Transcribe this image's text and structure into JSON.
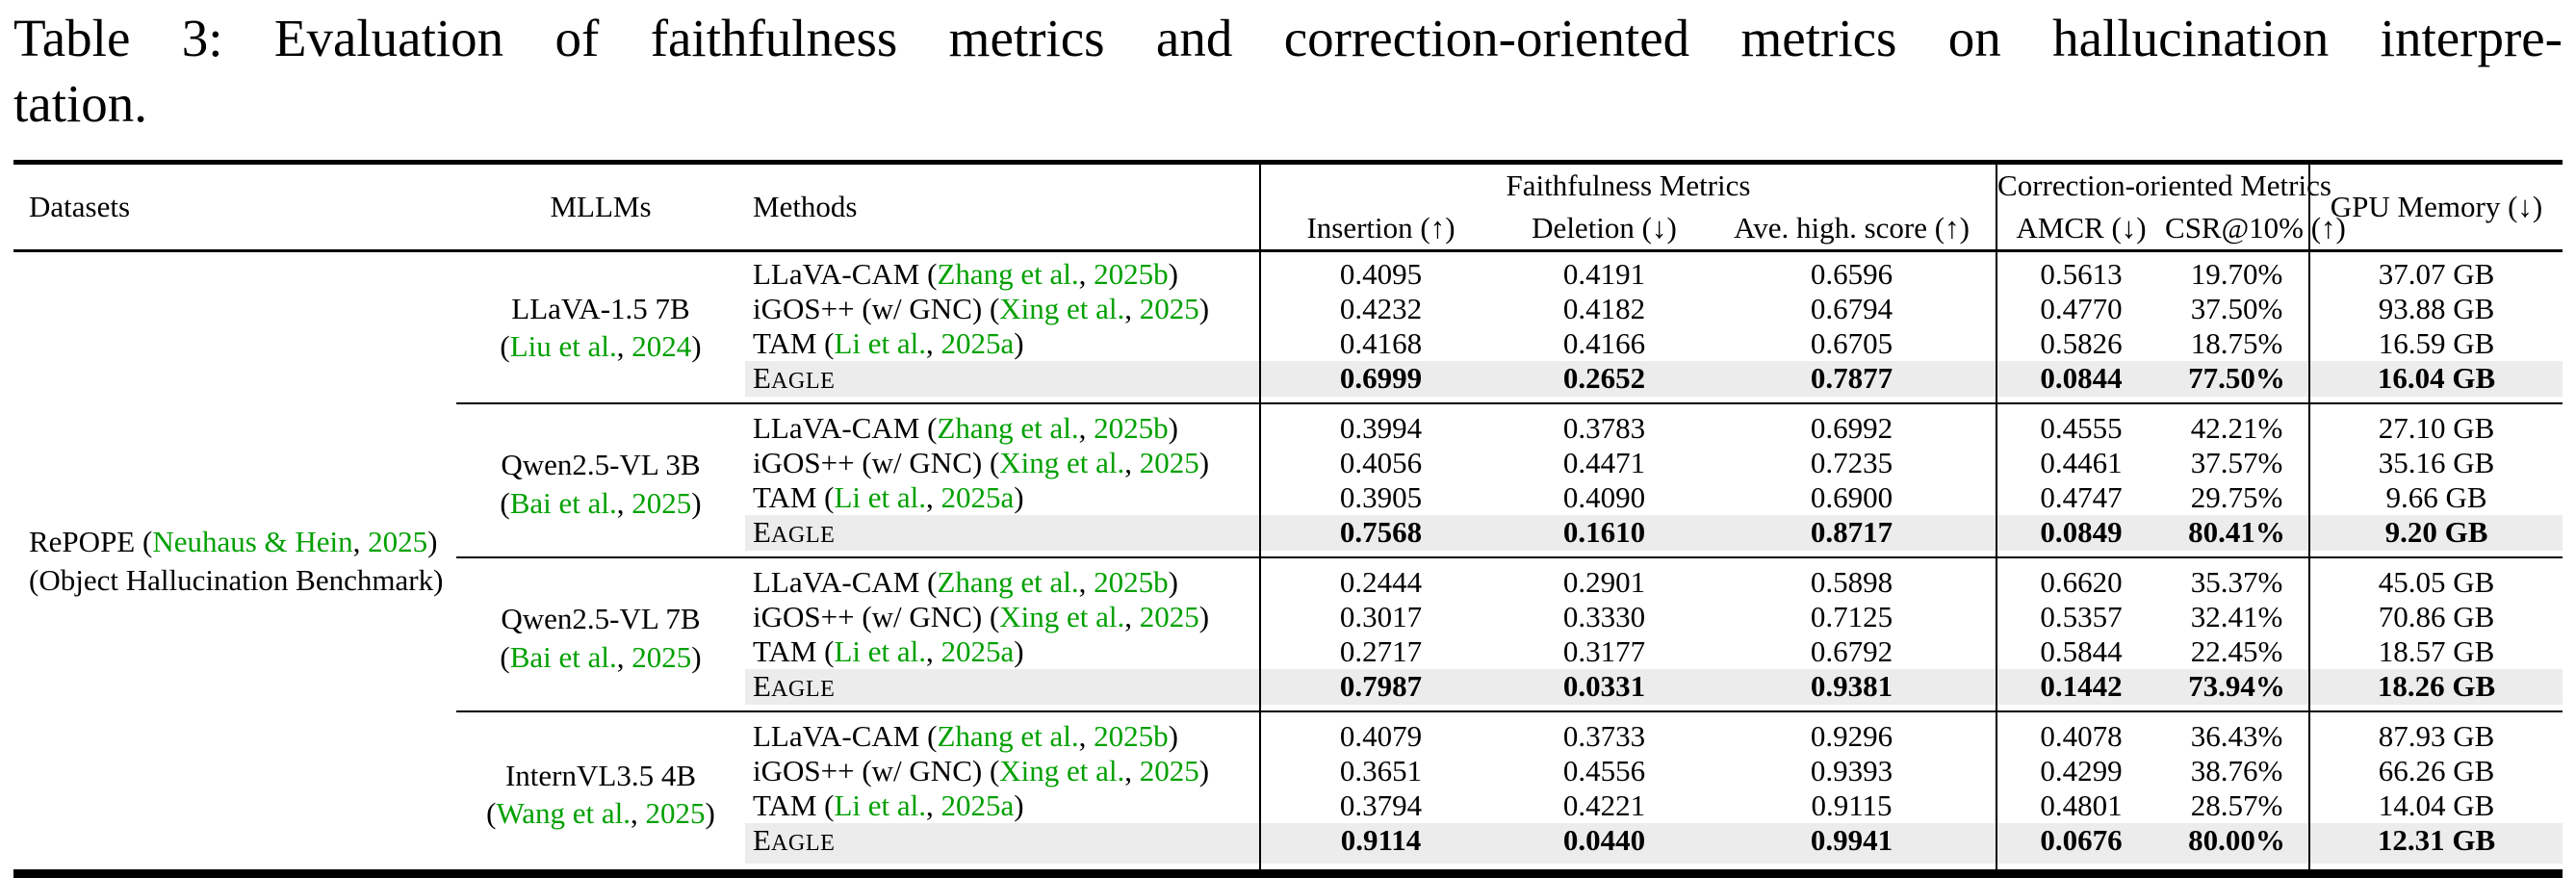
{
  "title": {
    "line1": "Table 3: Evaluation of faithfulness metrics and correction-oriented metrics on hallucination interpre-",
    "line2": "tation."
  },
  "colors": {
    "citation_green": "#00A000",
    "highlight_row": "#ECECEC",
    "rule_black": "#000000"
  },
  "header": {
    "datasets": "Datasets",
    "mllms": "MLLMs",
    "methods": "Methods",
    "faithfulness_group": "Faithfulness Metrics",
    "correction_group": "Correction-oriented Metrics",
    "gpu": "GPU Memory (↓)",
    "insertion": "Insertion (↑)",
    "deletion": "Deletion (↓)",
    "ave_high": "Ave. high. score (↑)",
    "amcr": "AMCR (↓)",
    "csr": "CSR@10% (↑)"
  },
  "dataset": {
    "name": "RePOPE",
    "cite_author": "Neuhaus & Hein",
    "cite_year": "2025",
    "subtitle": "(Object Hallucination Benchmark)"
  },
  "metric_keys": [
    "insertion",
    "deletion",
    "ave-high-score",
    "amcr",
    "csr-at-10",
    "gpu-memory"
  ],
  "groups": [
    {
      "mllm": {
        "name": "LLaVA-1.5 7B",
        "cite_author": "Liu et al.",
        "cite_year": "2024"
      },
      "rows": [
        {
          "method": {
            "text": "LLaVA-CAM",
            "cite_author": "Zhang et al.",
            "cite_year": "2025b",
            "smallcaps": false
          },
          "highlight": false,
          "values": [
            "0.4095",
            "0.4191",
            "0.6596",
            "0.5613",
            "19.70%",
            "37.07 GB"
          ]
        },
        {
          "method": {
            "text": "iGOS++ (w/ GNC)",
            "cite_author": "Xing et al.",
            "cite_year": "2025",
            "smallcaps": false
          },
          "highlight": false,
          "values": [
            "0.4232",
            "0.4182",
            "0.6794",
            "0.4770",
            "37.50%",
            "93.88 GB"
          ]
        },
        {
          "method": {
            "text": "TAM",
            "cite_author": "Li et al.",
            "cite_year": "2025a",
            "smallcaps": false
          },
          "highlight": false,
          "values": [
            "0.4168",
            "0.4166",
            "0.6705",
            "0.5826",
            "18.75%",
            "16.59 GB"
          ]
        },
        {
          "method": {
            "text": "Eagle",
            "cite_author": null,
            "cite_year": null,
            "smallcaps": true
          },
          "highlight": true,
          "values": [
            "0.6999",
            "0.2652",
            "0.7877",
            "0.0844",
            "77.50%",
            "16.04 GB"
          ]
        }
      ]
    },
    {
      "mllm": {
        "name": "Qwen2.5-VL 3B",
        "cite_author": "Bai et al.",
        "cite_year": "2025"
      },
      "rows": [
        {
          "method": {
            "text": "LLaVA-CAM",
            "cite_author": "Zhang et al.",
            "cite_year": "2025b",
            "smallcaps": false
          },
          "highlight": false,
          "values": [
            "0.3994",
            "0.3783",
            "0.6992",
            "0.4555",
            "42.21%",
            "27.10 GB"
          ]
        },
        {
          "method": {
            "text": "iGOS++ (w/ GNC)",
            "cite_author": "Xing et al.",
            "cite_year": "2025",
            "smallcaps": false
          },
          "highlight": false,
          "values": [
            "0.4056",
            "0.4471",
            "0.7235",
            "0.4461",
            "37.57%",
            "35.16 GB"
          ]
        },
        {
          "method": {
            "text": "TAM",
            "cite_author": "Li et al.",
            "cite_year": "2025a",
            "smallcaps": false
          },
          "highlight": false,
          "values": [
            "0.3905",
            "0.4090",
            "0.6900",
            "0.4747",
            "29.75%",
            "9.66 GB"
          ]
        },
        {
          "method": {
            "text": "Eagle",
            "cite_author": null,
            "cite_year": null,
            "smallcaps": true
          },
          "highlight": true,
          "values": [
            "0.7568",
            "0.1610",
            "0.8717",
            "0.0849",
            "80.41%",
            "9.20 GB"
          ]
        }
      ]
    },
    {
      "mllm": {
        "name": "Qwen2.5-VL 7B",
        "cite_author": "Bai et al.",
        "cite_year": "2025"
      },
      "rows": [
        {
          "method": {
            "text": "LLaVA-CAM",
            "cite_author": "Zhang et al.",
            "cite_year": "2025b",
            "smallcaps": false
          },
          "highlight": false,
          "values": [
            "0.2444",
            "0.2901",
            "0.5898",
            "0.6620",
            "35.37%",
            "45.05 GB"
          ]
        },
        {
          "method": {
            "text": "iGOS++ (w/ GNC)",
            "cite_author": "Xing et al.",
            "cite_year": "2025",
            "smallcaps": false
          },
          "highlight": false,
          "values": [
            "0.3017",
            "0.3330",
            "0.7125",
            "0.5357",
            "32.41%",
            "70.86 GB"
          ]
        },
        {
          "method": {
            "text": "TAM",
            "cite_author": "Li et al.",
            "cite_year": "2025a",
            "smallcaps": false
          },
          "highlight": false,
          "values": [
            "0.2717",
            "0.3177",
            "0.6792",
            "0.5844",
            "22.45%",
            "18.57 GB"
          ]
        },
        {
          "method": {
            "text": "Eagle",
            "cite_author": null,
            "cite_year": null,
            "smallcaps": true
          },
          "highlight": true,
          "values": [
            "0.7987",
            "0.0331",
            "0.9381",
            "0.1442",
            "73.94%",
            "18.26 GB"
          ]
        }
      ]
    },
    {
      "mllm": {
        "name": "InternVL3.5 4B",
        "cite_author": "Wang et al.",
        "cite_year": "2025"
      },
      "rows": [
        {
          "method": {
            "text": "LLaVA-CAM",
            "cite_author": "Zhang et al.",
            "cite_year": "2025b",
            "smallcaps": false
          },
          "highlight": false,
          "values": [
            "0.4079",
            "0.3733",
            "0.9296",
            "0.4078",
            "36.43%",
            "87.93 GB"
          ]
        },
        {
          "method": {
            "text": "iGOS++ (w/ GNC)",
            "cite_author": "Xing et al.",
            "cite_year": "2025",
            "smallcaps": false
          },
          "highlight": false,
          "values": [
            "0.3651",
            "0.4556",
            "0.9393",
            "0.4299",
            "38.76%",
            "66.26 GB"
          ]
        },
        {
          "method": {
            "text": "TAM",
            "cite_author": "Li et al.",
            "cite_year": "2025a",
            "smallcaps": false
          },
          "highlight": false,
          "values": [
            "0.3794",
            "0.4221",
            "0.9115",
            "0.4801",
            "28.57%",
            "14.04 GB"
          ]
        },
        {
          "method": {
            "text": "Eagle",
            "cite_author": null,
            "cite_year": null,
            "smallcaps": true
          },
          "highlight": true,
          "values": [
            "0.9114",
            "0.0440",
            "0.9941",
            "0.0676",
            "80.00%",
            "12.31 GB"
          ]
        }
      ]
    }
  ]
}
